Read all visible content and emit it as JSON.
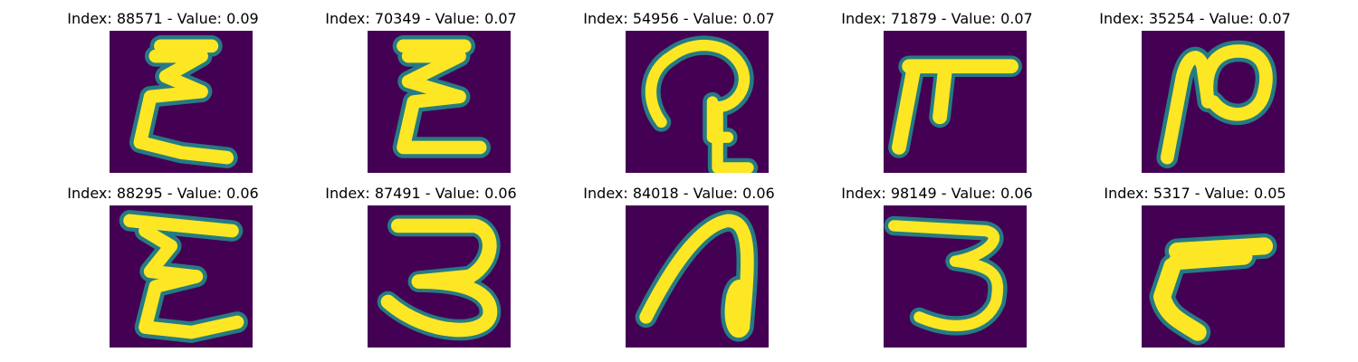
{
  "colors": {
    "background": "#440154",
    "edge_teal": "#21918c",
    "edge_green": "#5ec962",
    "stroke_yellow": "#fde725"
  },
  "panels": [
    {
      "index": "88571",
      "value": "0.09",
      "title": "Index: 88571 - Value: 0.09",
      "glyph": "sigma-like E"
    },
    {
      "index": "70349",
      "value": "0.07",
      "title": "Index: 70349 - Value: 0.07",
      "glyph": "sigma-like E"
    },
    {
      "index": "54956",
      "value": "0.07",
      "title": "Index: 54956 - Value: 0.07",
      "glyph": "looped curve with hook"
    },
    {
      "index": "71879",
      "value": "0.07",
      "title": "Index: 71879 - Value: 0.07",
      "glyph": "F-like strokes"
    },
    {
      "index": "35254",
      "value": "0.07",
      "title": "Index: 35254 - Value: 0.07",
      "glyph": "looped stroke"
    },
    {
      "index": "88295",
      "value": "0.06",
      "title": "Index: 88295 - Value: 0.06",
      "glyph": "sigma-like E"
    },
    {
      "index": "87491",
      "value": "0.06",
      "title": "Index: 87491 - Value: 0.06",
      "glyph": "3"
    },
    {
      "index": "84018",
      "value": "0.06",
      "title": "Index: 84018 - Value: 0.06",
      "glyph": "curved loop"
    },
    {
      "index": "98149",
      "value": "0.06",
      "title": "Index: 98149 - Value: 0.06",
      "glyph": "3"
    },
    {
      "index": "5317",
      "value": "0.05",
      "title": "Index: 5317 - Value: 0.05",
      "glyph": "hook stroke"
    }
  ]
}
